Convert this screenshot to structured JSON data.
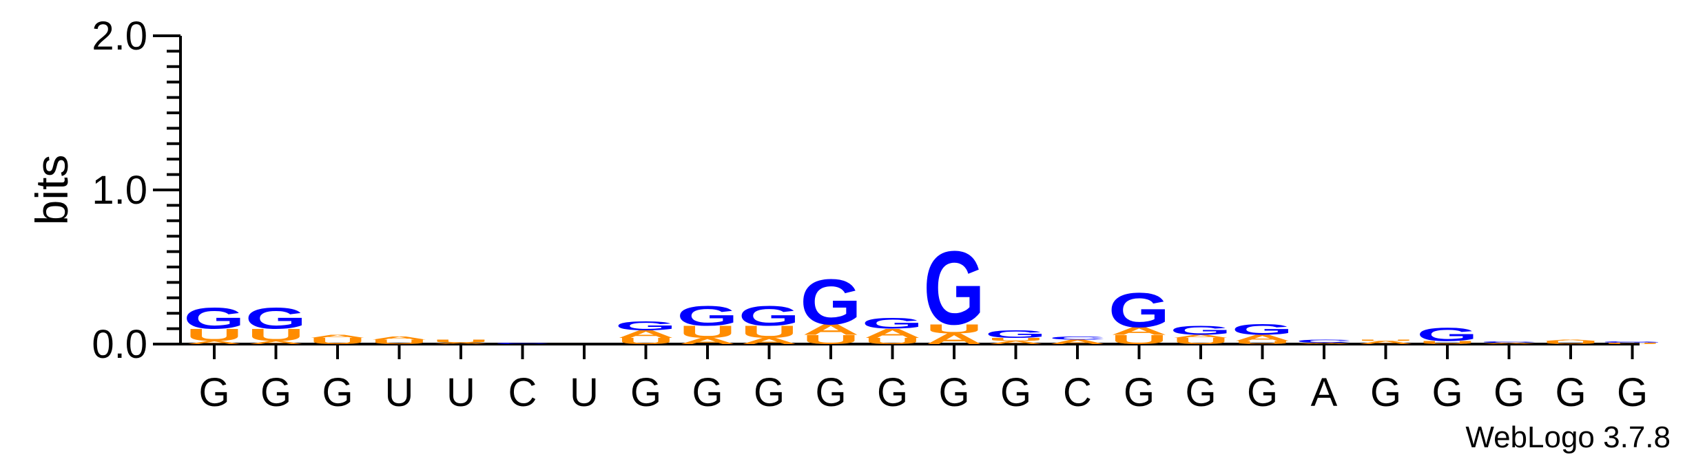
{
  "chart_data": {
    "type": "sequence-logo",
    "ylabel": "bits",
    "ylim": [
      0,
      2
    ],
    "yticks": [
      {
        "value": 0,
        "label": "0.0"
      },
      {
        "value": 1,
        "label": "1.0"
      },
      {
        "value": 2,
        "label": "2.0"
      }
    ],
    "minor_tick_step": 0.1,
    "positions": [
      "G",
      "G",
      "G",
      "U",
      "U",
      "C",
      "U",
      "G",
      "G",
      "G",
      "G",
      "G",
      "G",
      "G",
      "C",
      "G",
      "G",
      "G",
      "A",
      "G",
      "G",
      "G",
      "G",
      "G"
    ],
    "colors": {
      "G": "#0000ff",
      "U": "#ff8c00",
      "A": "#ff8c00",
      "C": "#0000ff"
    },
    "stacks": [
      [
        {
          "letter": "A",
          "bits": 0.02
        },
        {
          "letter": "U",
          "bits": 0.08
        },
        {
          "letter": "G",
          "bits": 0.14
        }
      ],
      [
        {
          "letter": "A",
          "bits": 0.02
        },
        {
          "letter": "U",
          "bits": 0.08
        },
        {
          "letter": "G",
          "bits": 0.14
        }
      ],
      [
        {
          "letter": "U",
          "bits": 0.04
        },
        {
          "letter": "A",
          "bits": 0.02
        }
      ],
      [
        {
          "letter": "U",
          "bits": 0.03
        },
        {
          "letter": "A",
          "bits": 0.02
        }
      ],
      [
        {
          "letter": "A",
          "bits": 0.01
        },
        {
          "letter": "U",
          "bits": 0.02
        }
      ],
      [
        {
          "letter": "C",
          "bits": 0.01
        }
      ],
      [],
      [
        {
          "letter": "U",
          "bits": 0.04
        },
        {
          "letter": "A",
          "bits": 0.05
        },
        {
          "letter": "G",
          "bits": 0.06
        }
      ],
      [
        {
          "letter": "A",
          "bits": 0.04
        },
        {
          "letter": "U",
          "bits": 0.08
        },
        {
          "letter": "G",
          "bits": 0.13
        }
      ],
      [
        {
          "letter": "A",
          "bits": 0.04
        },
        {
          "letter": "U",
          "bits": 0.08
        },
        {
          "letter": "G",
          "bits": 0.13
        }
      ],
      [
        {
          "letter": "U",
          "bits": 0.06
        },
        {
          "letter": "A",
          "bits": 0.07
        },
        {
          "letter": "G",
          "bits": 0.3
        }
      ],
      [
        {
          "letter": "U",
          "bits": 0.04
        },
        {
          "letter": "A",
          "bits": 0.06
        },
        {
          "letter": "G",
          "bits": 0.07
        }
      ],
      [
        {
          "letter": "A",
          "bits": 0.07
        },
        {
          "letter": "U",
          "bits": 0.06
        },
        {
          "letter": "G",
          "bits": 0.49
        }
      ],
      [
        {
          "letter": "A",
          "bits": 0.02
        },
        {
          "letter": "U",
          "bits": 0.02
        },
        {
          "letter": "G",
          "bits": 0.05
        }
      ],
      [
        {
          "letter": "A",
          "bits": 0.03
        },
        {
          "letter": "C",
          "bits": 0.02
        }
      ],
      [
        {
          "letter": "U",
          "bits": 0.06
        },
        {
          "letter": "A",
          "bits": 0.05
        },
        {
          "letter": "G",
          "bits": 0.23
        }
      ],
      [
        {
          "letter": "U",
          "bits": 0.04
        },
        {
          "letter": "A",
          "bits": 0.02
        },
        {
          "letter": "G",
          "bits": 0.06
        }
      ],
      [
        {
          "letter": "U",
          "bits": 0.02
        },
        {
          "letter": "A",
          "bits": 0.04
        },
        {
          "letter": "G",
          "bits": 0.07
        }
      ],
      [
        {
          "letter": "A",
          "bits": 0.01
        },
        {
          "letter": "C",
          "bits": 0.02
        }
      ],
      [
        {
          "letter": "A",
          "bits": 0.02
        },
        {
          "letter": "U",
          "bits": 0.01
        }
      ],
      [
        {
          "letter": "U",
          "bits": 0.02
        },
        {
          "letter": "G",
          "bits": 0.09
        }
      ],
      [
        {
          "letter": "A",
          "bits": 0.01
        },
        {
          "letter": "C",
          "bits": 0.01
        }
      ],
      [
        {
          "letter": "U",
          "bits": 0.02
        },
        {
          "letter": "A",
          "bits": 0.01
        }
      ],
      [
        {
          "letter": "U",
          "bits": 0.01
        },
        {
          "letter": "G",
          "bits": 0.01
        }
      ]
    ],
    "credit": "WebLogo 3.7.8"
  }
}
